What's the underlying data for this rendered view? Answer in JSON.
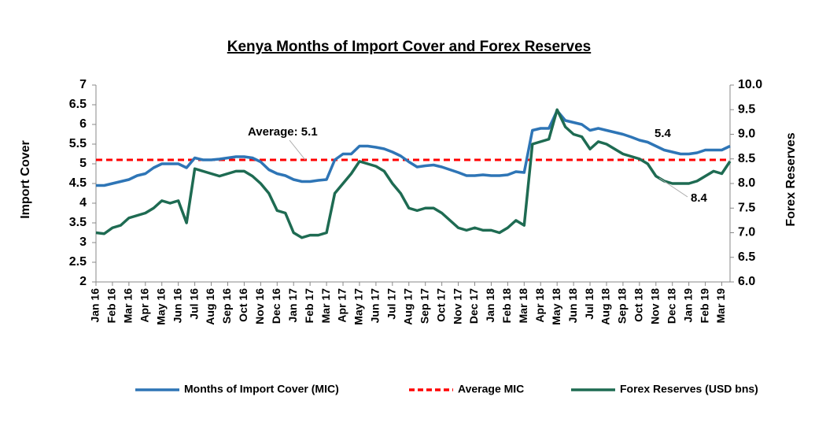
{
  "chart_data": {
    "type": "line",
    "title": "Kenya Months of Import Cover and Forex Reserves",
    "y_label": "Import Cover",
    "y2_label": "Forex Reserves",
    "categories": [
      "Jan 16",
      null,
      "Feb 16",
      null,
      "Mar 16",
      null,
      "Apr 16",
      null,
      "May 16",
      null,
      "Jun 16",
      null,
      "Jul 16",
      null,
      "Aug 16",
      null,
      "Sep 16",
      null,
      "Oct 16",
      null,
      "Nov 16",
      null,
      "Dec 16",
      null,
      "Jan 17",
      null,
      "Feb 17",
      null,
      "Mar 17",
      null,
      "Apr 17",
      null,
      "May 17",
      null,
      "Jun 17",
      null,
      "Jul 17",
      null,
      "Aug 17",
      null,
      "Sep 17",
      null,
      "Oct 17",
      null,
      "Nov 17",
      null,
      "Dec 17",
      null,
      "Jan 18",
      null,
      "Feb 18",
      null,
      "Mar 18",
      null,
      "Apr 18",
      null,
      "May 18",
      null,
      "Jun 18",
      null,
      "Jul 18",
      null,
      "Aug 18",
      null,
      "Sep 18",
      null,
      "Oct 18",
      null,
      "Nov 18",
      null,
      "Dec 18",
      null,
      "Jan 19",
      null,
      "Feb 19",
      null,
      "Mar 19",
      null
    ],
    "series": [
      {
        "name": "Months of Import Cover (MIC)",
        "color": "#2e75b6",
        "axis": "y",
        "values": [
          4.45,
          4.45,
          4.5,
          4.55,
          4.6,
          4.7,
          4.75,
          4.9,
          5.0,
          5.0,
          5.0,
          4.9,
          5.15,
          5.1,
          5.1,
          5.12,
          5.15,
          5.18,
          5.18,
          5.15,
          5.05,
          4.85,
          4.75,
          4.7,
          4.6,
          4.55,
          4.55,
          4.58,
          4.6,
          5.1,
          5.25,
          5.25,
          5.45,
          5.45,
          5.42,
          5.38,
          5.3,
          5.2,
          5.05,
          4.92,
          4.95,
          4.97,
          4.92,
          4.85,
          4.78,
          4.7,
          4.7,
          4.72,
          4.7,
          4.7,
          4.72,
          4.8,
          4.78,
          5.85,
          5.9,
          5.9,
          6.35,
          6.1,
          6.05,
          6.0,
          5.85,
          5.9,
          5.85,
          5.8,
          5.75,
          5.68,
          5.6,
          5.55,
          5.45,
          5.35,
          5.3,
          5.25,
          5.25,
          5.28,
          5.35,
          5.35,
          5.35,
          5.45
        ]
      },
      {
        "name": "Forex Reserves (USD bns)",
        "color": "#1e6b52",
        "axis": "y2",
        "values": [
          7.0,
          6.98,
          7.1,
          7.15,
          7.3,
          7.35,
          7.4,
          7.5,
          7.65,
          7.6,
          7.65,
          7.2,
          8.3,
          8.25,
          8.2,
          8.15,
          8.2,
          8.25,
          8.25,
          8.15,
          8.0,
          7.8,
          7.45,
          7.4,
          7.0,
          6.9,
          6.95,
          6.95,
          7.0,
          7.8,
          8.0,
          8.2,
          8.45,
          8.4,
          8.35,
          8.25,
          8.0,
          7.8,
          7.5,
          7.45,
          7.5,
          7.5,
          7.4,
          7.25,
          7.1,
          7.05,
          7.1,
          7.05,
          7.05,
          7.0,
          7.1,
          7.25,
          7.15,
          8.8,
          8.85,
          8.9,
          9.5,
          9.15,
          9.0,
          8.95,
          8.7,
          8.85,
          8.8,
          8.7,
          8.6,
          8.55,
          8.5,
          8.4,
          8.15,
          8.05,
          8.0,
          8.0,
          8.0,
          8.05,
          8.15,
          8.25,
          8.2,
          8.45
        ]
      }
    ],
    "average": {
      "name": "Average MIC",
      "value": 5.1,
      "color": "#ff0000"
    },
    "annotations": [
      "Average: 5.1",
      "5.4",
      "8.4"
    ],
    "ylim": [
      2,
      7
    ],
    "yticks": [
      2,
      2.5,
      3,
      3.5,
      4,
      4.5,
      5,
      5.5,
      6,
      6.5,
      7
    ],
    "y2lim": [
      6,
      10
    ],
    "y2ticks": [
      {
        "value": 6,
        "label": "6.0"
      },
      {
        "value": 6.5,
        "label": "6.5"
      },
      {
        "value": 7,
        "label": "7.0"
      },
      {
        "value": 7.5,
        "label": "7.5"
      },
      {
        "value": 8,
        "label": "8.0"
      },
      {
        "value": 8.5,
        "label": "8.5"
      },
      {
        "value": 9,
        "label": "9.0"
      },
      {
        "value": 9.5,
        "label": "9.5"
      },
      {
        "value": 10,
        "label": "10.0"
      }
    ],
    "legend": "bottom"
  }
}
